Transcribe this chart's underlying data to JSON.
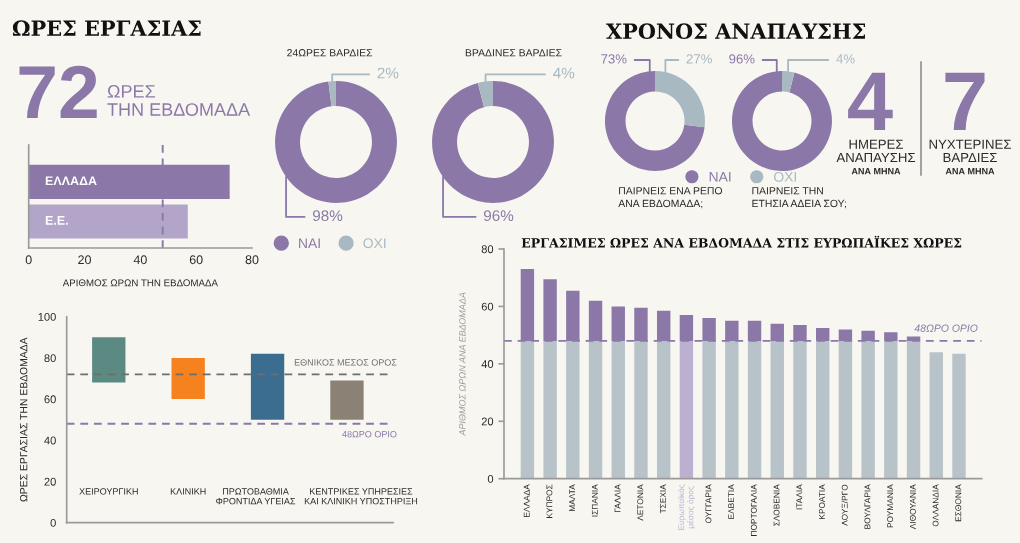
{
  "chart_data": [
    {
      "type": "other",
      "title": "ΩΡΕΣ ΕΡΓΑΣΙΑΣ",
      "color": "#8b78a8",
      "annotations": [
        "72",
        "ΩΡΕΣ\nΤΗΝ ΕΒΔΟΜΑΔΑ"
      ]
    },
    {
      "type": "bar",
      "orientation": "horizontal",
      "categories": [
        "ΕΛΛΑΔΑ",
        "Ε.Ε."
      ],
      "values": [
        72,
        57
      ],
      "colors": [
        "#8b78a8",
        "#b3a5c9"
      ],
      "xlabel": "ΑΡΙΘΜΟΣ ΩΡΩΝ ΤΗΝ ΕΒΔΟΜΑΔΑ",
      "xlim": [
        0,
        80
      ],
      "xticks": [
        0,
        20,
        40,
        60,
        80
      ],
      "ref_lines": [
        {
          "axis": "x",
          "value": 48,
          "color": "#8b78a8",
          "line_style": "dashed"
        }
      ]
    },
    {
      "type": "donut",
      "title": "24ΩΡΕΣ ΒΑΡΔΙΕΣ",
      "categories": [
        "ΝΑΙ",
        "ΟΧΙ"
      ],
      "values": [
        98,
        2
      ],
      "colors": [
        "#8b78a8",
        "#a9b9c2"
      ],
      "value_labels": [
        "98%",
        "2%"
      ],
      "legend": "bottom"
    },
    {
      "type": "donut",
      "title": "ΒΡΑΔΙΝΕΣ ΒΑΡΔΙΕΣ",
      "categories": [
        null,
        null
      ],
      "values": [
        96,
        4
      ],
      "colors": [
        "#8b78a8",
        "#a9b9c2"
      ],
      "value_labels": [
        "96%",
        "4%"
      ]
    },
    {
      "type": "other",
      "title": "ΧΡΟΝΟΣ ΑΝΑΠΑΥΣΗΣ"
    },
    {
      "type": "donut",
      "title": "ΠΑΙΡΝΕΙΣ ΕΝΑ ΡΕΠΟ\nΑΝΑ ΕΒΔΟΜΑΔΑ;",
      "categories": [
        "ΝΑΙ",
        "ΟΧΙ"
      ],
      "values": [
        73,
        27
      ],
      "colors": [
        "#8b78a8",
        "#a9b9c2"
      ],
      "value_labels": [
        "73%",
        "27%"
      ],
      "legend": "bottom right"
    },
    {
      "type": "donut",
      "title": "ΠΑΙΡΝΕΙΣ ΤΗΝ\nΕΤΗΣΙΑ ΑΔΕΙΑ ΣΟΥ;",
      "categories": [
        null,
        null
      ],
      "values": [
        96,
        4
      ],
      "colors": [
        "#8b78a8",
        "#a9b9c2"
      ],
      "value_labels": [
        "96%",
        "4%"
      ]
    },
    {
      "type": "other",
      "color": "#8b78a8",
      "annotations": [
        "4",
        "ΗΜΕΡΕΣ\nΑΝΑΠΑΥΣΗΣ",
        "ΑΝΑ ΜΗΝΑ",
        "7",
        "ΝΥΧΤΕΡΙΝΕΣ\nΒΑΡΔΙΕΣ",
        "ΑΝΑ ΜΗΝΑ"
      ]
    },
    {
      "type": "bar",
      "categories": [
        "ΧΕΙΡΟΥΡΓΙΚΗ",
        "ΚΛΙΝΙΚΗ",
        "ΠΡΩΤΟΒΑΘΜΙΑ\nΦΡΟΝΤΙΔΑ ΥΓΕΙΑΣ",
        "ΚΕΝΤΡΙΚΕΣ ΥΠΗΡΕΣΙΕΣ\nΚΑΙ ΚΛΙΝΙΚΗ ΥΠΟΣΤΗΡΙΞΗ"
      ],
      "base": [
        68,
        60,
        50,
        50
      ],
      "values": [
        22,
        20,
        32,
        19
      ],
      "colors": [
        "#5b8a82",
        "#f5821f",
        "#3b6d91",
        "#8b8275"
      ],
      "ylabel": "ΩΡΕΣ ΕΡΓΑΣΙΑΣ ΤΗΝ ΕΒΔΟΜΑΔΑ",
      "ylim": [
        0,
        100
      ],
      "yticks": [
        0,
        20,
        40,
        60,
        80,
        100
      ],
      "ref_lines": [
        {
          "axis": "y",
          "value": 72,
          "label": "ΕΘΝΙΚΟΣ ΜΕΣΟΣ ΟΡΟΣ",
          "color": "#6e6e6e",
          "line_style": "dashed"
        },
        {
          "axis": "y",
          "value": 48,
          "label": "48ΩΡΟ ΟΡΙΟ",
          "color": "#8b78a8",
          "line_style": "dashed"
        }
      ]
    },
    {
      "type": "bar",
      "stacked": true,
      "title": "ΕΡΓΑΣΙΜΕΣ ΩΡΕΣ ΑΝΑ ΕΒΔΟΜΑΔΑ ΣΤΙΣ ΕΥΡΩΠΑΪΚΕΣ ΧΩΡΕΣ",
      "ylabel": "ΑΡΙΘΜΟΣ ΩΡΩΝ ΑΝΑ ΕΒΔΟΜΑΔΑ",
      "categories": [
        "ΕΛΛΑΔΑ",
        "ΚΥΠΡΟΣ",
        "ΜΑΛΤΑ",
        "ΙΣΠΑΝΙΑ",
        "ΓΑΛΛΙΑ",
        "ΛΕΤΟΝΙΑ",
        "ΤΣΕΧΙΑ",
        "Ευρωπαϊκός\nμέσος όρος",
        "ΟΥΓΓΑΡΙΑ",
        "ΕΛΒΕΤΙΑ",
        "ΠΟΡΤΟΓΑΛΙΑ",
        "ΣΛΟΒΕΝΙΑ",
        "ΙΤΑΛΙΑ",
        "ΚΡΟΑΤΙΑ",
        "ΛΟΥΞ/ΡΓΟ",
        "ΒΟΥΛΓΑΡΙΑ",
        "ΡΟΥΜΑΝΙΑ",
        "ΛΙΘΟΥΑΝΙΑ",
        "ΟΛΛΑΝΔΙΑ",
        "ΕΣΘΟΝΙΑ"
      ],
      "series": [
        {
          "color": "#b7c3c9",
          "colors": [
            "#b7c3c9",
            "#b7c3c9",
            "#b7c3c9",
            "#b7c3c9",
            "#b7c3c9",
            "#b7c3c9",
            "#b7c3c9",
            "#bcb0d1",
            "#b7c3c9",
            "#b7c3c9",
            "#b7c3c9",
            "#b7c3c9",
            "#b7c3c9",
            "#b7c3c9",
            "#b7c3c9",
            "#b7c3c9",
            "#b7c3c9",
            "#b7c3c9",
            "#b7c3c9",
            "#b7c3c9"
          ],
          "values": [
            48,
            48,
            48,
            48,
            48,
            48,
            48,
            48,
            48,
            48,
            48,
            48,
            48,
            48,
            48,
            48,
            48,
            48,
            44,
            43.5
          ]
        },
        {
          "color": "#8b78a8",
          "values": [
            25,
            21.5,
            17.5,
            14,
            12,
            11.5,
            10.5,
            9,
            8,
            7,
            7,
            6,
            5.5,
            4.5,
            4,
            3.5,
            3,
            1.5,
            null,
            null
          ]
        }
      ],
      "ylim": [
        0,
        80
      ],
      "yticks": [
        0,
        20,
        40,
        60,
        80
      ],
      "ref_lines": [
        {
          "axis": "y",
          "value": 48,
          "label": "48ΩΡΟ ΟΡΙΟ",
          "color": "#8b78a8",
          "line_style": "dashed"
        }
      ]
    }
  ]
}
